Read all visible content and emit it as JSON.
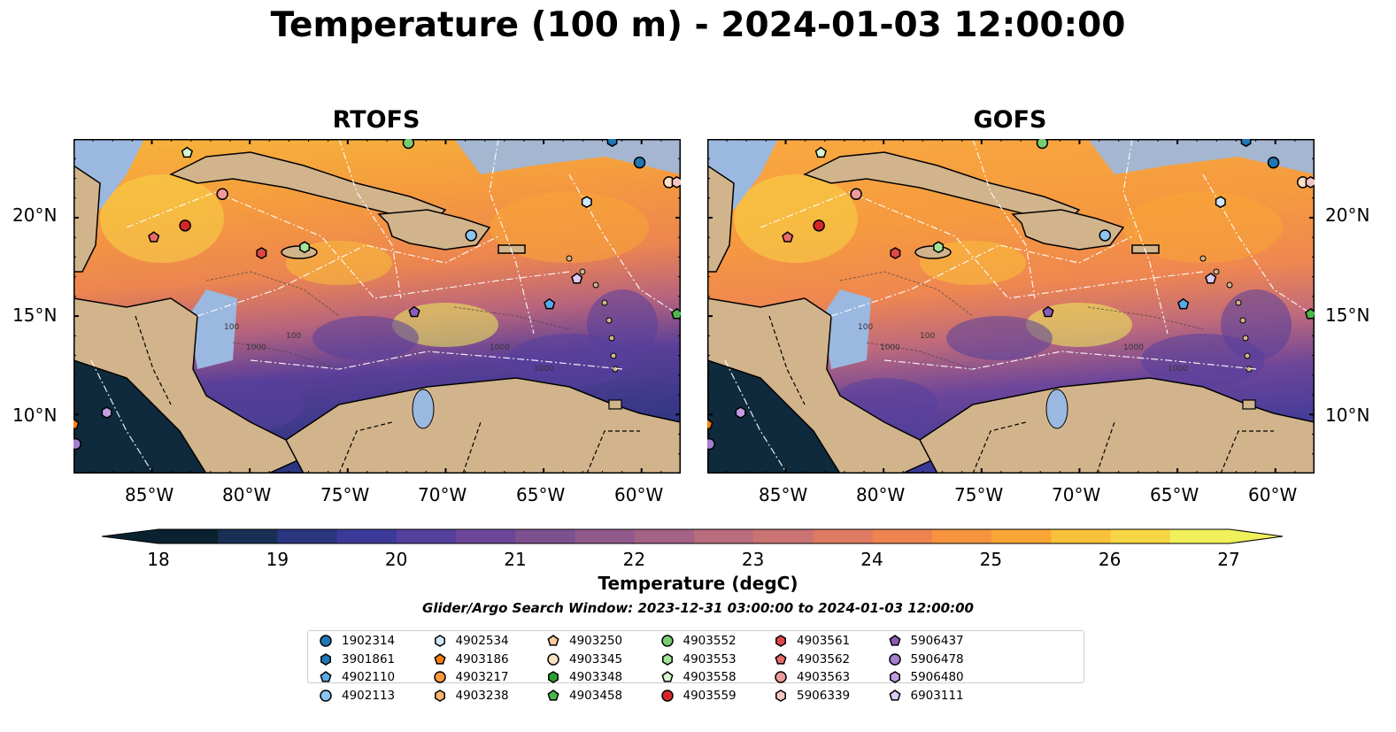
{
  "title": "Temperature (100 m) - 2024-01-03 12:00:00",
  "panels": [
    {
      "title": "RTOFS"
    },
    {
      "title": "GOFS"
    }
  ],
  "map": {
    "lon_range": [
      -89,
      -58
    ],
    "lat_range": [
      7,
      24
    ],
    "lon_ticks": [
      "85°W",
      "80°W",
      "75°W",
      "70°W",
      "65°W",
      "60°W"
    ],
    "lat_ticks": [
      "20°N",
      "15°N",
      "10°N"
    ],
    "land_color": "#d2b48c",
    "shallow_water_color": "#9bb8e0",
    "contour_labels": [
      "100",
      "1000",
      "1000",
      "1000",
      "100"
    ]
  },
  "colorbar": {
    "ticks": [
      "18",
      "19",
      "20",
      "21",
      "22",
      "23",
      "24",
      "25",
      "26",
      "27"
    ],
    "label": "Temperature (degC)",
    "vmin": 18,
    "vmax": 27,
    "colors": [
      "#0a2230",
      "#1a2f55",
      "#2b3580",
      "#3b3a99",
      "#553f9d",
      "#6c4699",
      "#7d5090",
      "#915a8c",
      "#a46285",
      "#b96c7c",
      "#cb7272",
      "#de7a61",
      "#ef8350",
      "#f6933f",
      "#f8a636",
      "#f9c03a",
      "#f7d645",
      "#eff05a"
    ]
  },
  "search_window": "Glider/Argo Search Window: 2023-12-31 03:00:00 to 2024-01-03 12:00:00",
  "legend": [
    {
      "id": "1902314",
      "color": "#1f77b4",
      "marker": "circle"
    },
    {
      "id": "3901861",
      "color": "#1f77b4",
      "marker": "hexagon"
    },
    {
      "id": "4902110",
      "color": "#5aa9e6",
      "marker": "pentagon"
    },
    {
      "id": "4902113",
      "color": "#8ec4f0",
      "marker": "circle"
    },
    {
      "id": "4902534",
      "color": "#cfe7fb",
      "marker": "hexagon"
    },
    {
      "id": "4903186",
      "color": "#ff7f0e",
      "marker": "pentagon"
    },
    {
      "id": "4903217",
      "color": "#ff9a3c",
      "marker": "circle"
    },
    {
      "id": "4903238",
      "color": "#ffb36b",
      "marker": "hexagon"
    },
    {
      "id": "4903250",
      "color": "#ffc999",
      "marker": "pentagon"
    },
    {
      "id": "4903345",
      "color": "#ffe0c4",
      "marker": "circle"
    },
    {
      "id": "4903348",
      "color": "#2ca02c",
      "marker": "hexagon"
    },
    {
      "id": "4903458",
      "color": "#4cb84c",
      "marker": "pentagon"
    },
    {
      "id": "4903552",
      "color": "#7acc72",
      "marker": "circle"
    },
    {
      "id": "4903553",
      "color": "#a4e49a",
      "marker": "hexagon"
    },
    {
      "id": "4903558",
      "color": "#d6f6cf",
      "marker": "pentagon"
    },
    {
      "id": "4903559",
      "color": "#d62728",
      "marker": "circle"
    },
    {
      "id": "4903561",
      "color": "#e04848",
      "marker": "hexagon"
    },
    {
      "id": "4903562",
      "color": "#ea6a6a",
      "marker": "pentagon"
    },
    {
      "id": "4903563",
      "color": "#f09a9a",
      "marker": "circle"
    },
    {
      "id": "5906339",
      "color": "#f7c4c4",
      "marker": "hexagon"
    },
    {
      "id": "5906437",
      "color": "#8c5db8",
      "marker": "pentagon"
    },
    {
      "id": "5906478",
      "color": "#a67ed1",
      "marker": "circle"
    },
    {
      "id": "5906480",
      "color": "#c09fe0",
      "marker": "hexagon"
    },
    {
      "id": "6903111",
      "color": "#dcc8f2",
      "marker": "pentagon"
    }
  ],
  "floats": [
    {
      "id": "1902314",
      "lon": -60.1,
      "lat": 22.8
    },
    {
      "id": "3901861",
      "lon": -61.5,
      "lat": 23.9
    },
    {
      "id": "4902110",
      "lon": -64.7,
      "lat": 15.6
    },
    {
      "id": "4902113",
      "lon": -68.7,
      "lat": 19.1
    },
    {
      "id": "4902534",
      "lon": -62.8,
      "lat": 20.8
    },
    {
      "id": "4903186",
      "lon": -89.0,
      "lat": 9.5
    },
    {
      "id": "4903250",
      "lon": -58.6,
      "lat": 21.8
    },
    {
      "id": "4903345",
      "lon": -58.6,
      "lat": 21.8
    },
    {
      "id": "4903458",
      "lon": -58.2,
      "lat": 15.1
    },
    {
      "id": "4903552",
      "lon": -71.9,
      "lat": 23.8
    },
    {
      "id": "4903553",
      "lon": -77.2,
      "lat": 18.5
    },
    {
      "id": "4903558",
      "lon": -83.2,
      "lat": 23.3
    },
    {
      "id": "4903559",
      "lon": -83.3,
      "lat": 19.6
    },
    {
      "id": "4903561",
      "lon": -79.4,
      "lat": 18.2
    },
    {
      "id": "4903562",
      "lon": -84.9,
      "lat": 19.0
    },
    {
      "id": "4903563",
      "lon": -81.4,
      "lat": 21.2
    },
    {
      "id": "5906339",
      "lon": -58.2,
      "lat": 21.8
    },
    {
      "id": "5906437",
      "lon": -71.6,
      "lat": 15.2
    },
    {
      "id": "5906480",
      "lon": -87.3,
      "lat": 10.1
    },
    {
      "id": "6903111",
      "lon": -63.3,
      "lat": 16.9
    },
    {
      "id": "5906478",
      "lon": -88.9,
      "lat": 8.5
    }
  ]
}
